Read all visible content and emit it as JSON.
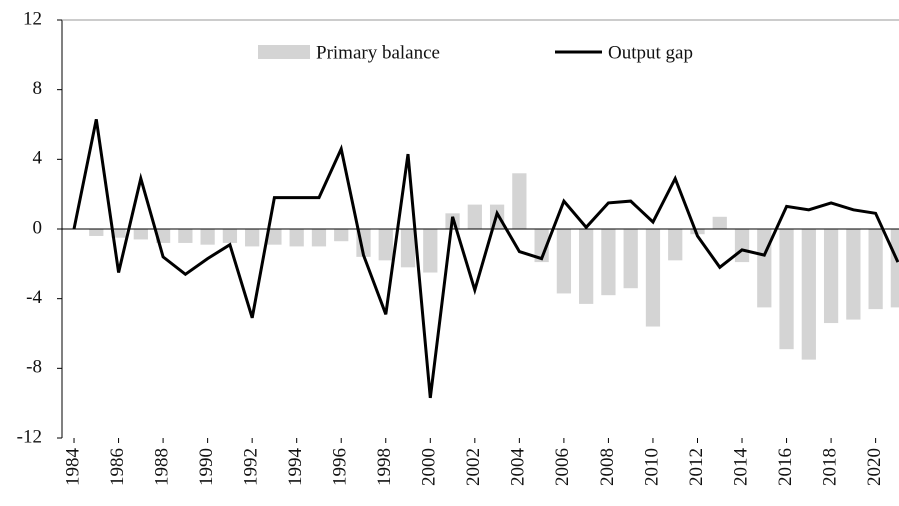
{
  "chart_data": {
    "type": "bar-line",
    "x": [
      1984,
      1985,
      1986,
      1987,
      1988,
      1989,
      1990,
      1991,
      1992,
      1993,
      1994,
      1995,
      1996,
      1997,
      1998,
      1999,
      2000,
      2001,
      2002,
      2003,
      2004,
      2005,
      2006,
      2007,
      2008,
      2009,
      2010,
      2011,
      2012,
      2013,
      2014,
      2015,
      2016,
      2017,
      2018,
      2019,
      2020,
      2021
    ],
    "xlim": [
      1983.46,
      2021.05
    ],
    "xticks": [
      1984,
      1986,
      1988,
      1990,
      1992,
      1994,
      1996,
      1998,
      2000,
      2002,
      2004,
      2006,
      2008,
      2010,
      2012,
      2014,
      2016,
      2018,
      2020
    ],
    "ylim": [
      -12,
      12
    ],
    "yticks": [
      -12,
      -8,
      -4,
      0,
      4,
      8,
      12
    ],
    "legend": "top",
    "series": [
      {
        "name": "Primary balance",
        "kind": "bar",
        "color": "#d4d4d4",
        "values": [
          null,
          -0.4,
          -0.5,
          -0.6,
          -0.8,
          -0.8,
          -0.9,
          -0.8,
          -1.0,
          -0.9,
          -1.0,
          -1.0,
          -0.7,
          -1.6,
          -1.8,
          -2.2,
          -2.5,
          0.9,
          1.4,
          1.4,
          3.2,
          -1.9,
          -3.7,
          -4.3,
          -3.8,
          -3.4,
          -5.6,
          -1.8,
          -0.3,
          0.7,
          -1.9,
          -4.5,
          -6.9,
          -7.5,
          -5.4,
          -5.2,
          -4.6,
          -4.5
        ]
      },
      {
        "name": "Output gap",
        "kind": "line",
        "color": "#000000",
        "values": [
          0,
          6.3,
          -2.5,
          2.9,
          -1.6,
          -2.6,
          -1.7,
          -0.9,
          -5.1,
          1.8,
          1.8,
          1.8,
          4.6,
          -1.5,
          -4.9,
          4.3,
          -9.7,
          0.7,
          -3.5,
          0.9,
          -1.3,
          -1.7,
          1.6,
          0.1,
          1.5,
          1.6,
          0.4,
          2.9,
          -0.4,
          -2.2,
          -1.2,
          -1.5,
          1.3,
          1.1,
          1.5,
          1.1,
          0.9,
          -1.9
        ]
      }
    ]
  }
}
